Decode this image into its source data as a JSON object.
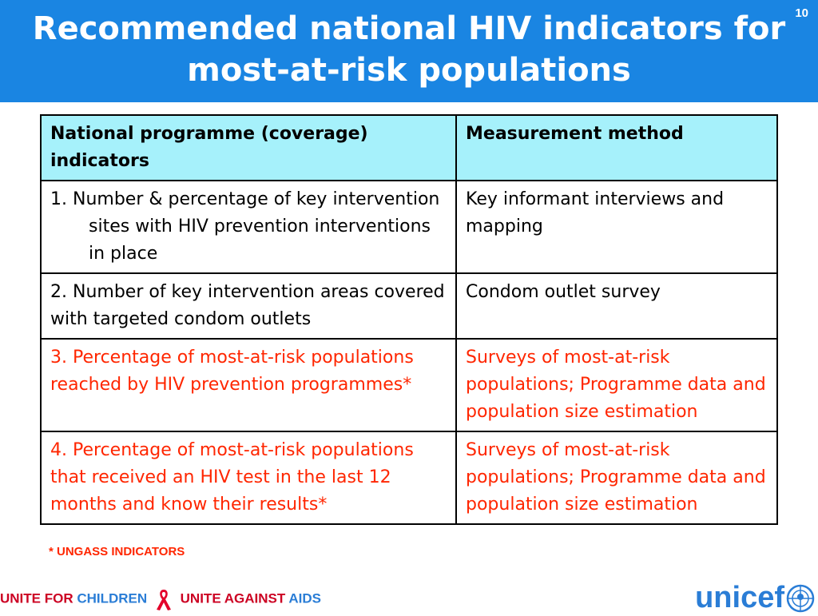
{
  "slide": {
    "title_line1": "Recommended national HIV indicators for",
    "title_line2": "most-at-risk populations",
    "number": "10"
  },
  "table": {
    "headers": [
      "National programme (coverage) indicators",
      "Measurement method"
    ],
    "rows": [
      {
        "indicator": "1. Number & percentage of key intervention sites with HIV prevention interventions in place",
        "method": "Key informant interviews and mapping"
      },
      {
        "indicator": "2. Number of key intervention areas covered with targeted condom outlets",
        "method": "Condom outlet survey"
      },
      {
        "indicator": "3. Percentage of most-at-risk populations reached by HIV prevention programmes*",
        "method": "Surveys of most-at-risk populations; Programme data and population size estimation"
      },
      {
        "indicator": "4. Percentage of most-at-risk populations that received an HIV test in the last 12 months and know their results*",
        "method": "Surveys of most-at-risk populations; Programme data and population size estimation"
      }
    ]
  },
  "footnote": "* UNGASS INDICATORS",
  "footer": {
    "left_a": "UNITE FOR ",
    "left_b": "CHILDREN",
    "right_a": "UNITE AGAINST ",
    "right_b": "AIDS",
    "logo": "unicef"
  },
  "colors": {
    "header": "#1a85e2",
    "table_header": "#a6f1fb",
    "highlight_text": "#ff2600",
    "brand_blue": "#2a7dd6"
  },
  "icons": [
    "aids-ribbon-icon",
    "unicef-globe-icon"
  ]
}
